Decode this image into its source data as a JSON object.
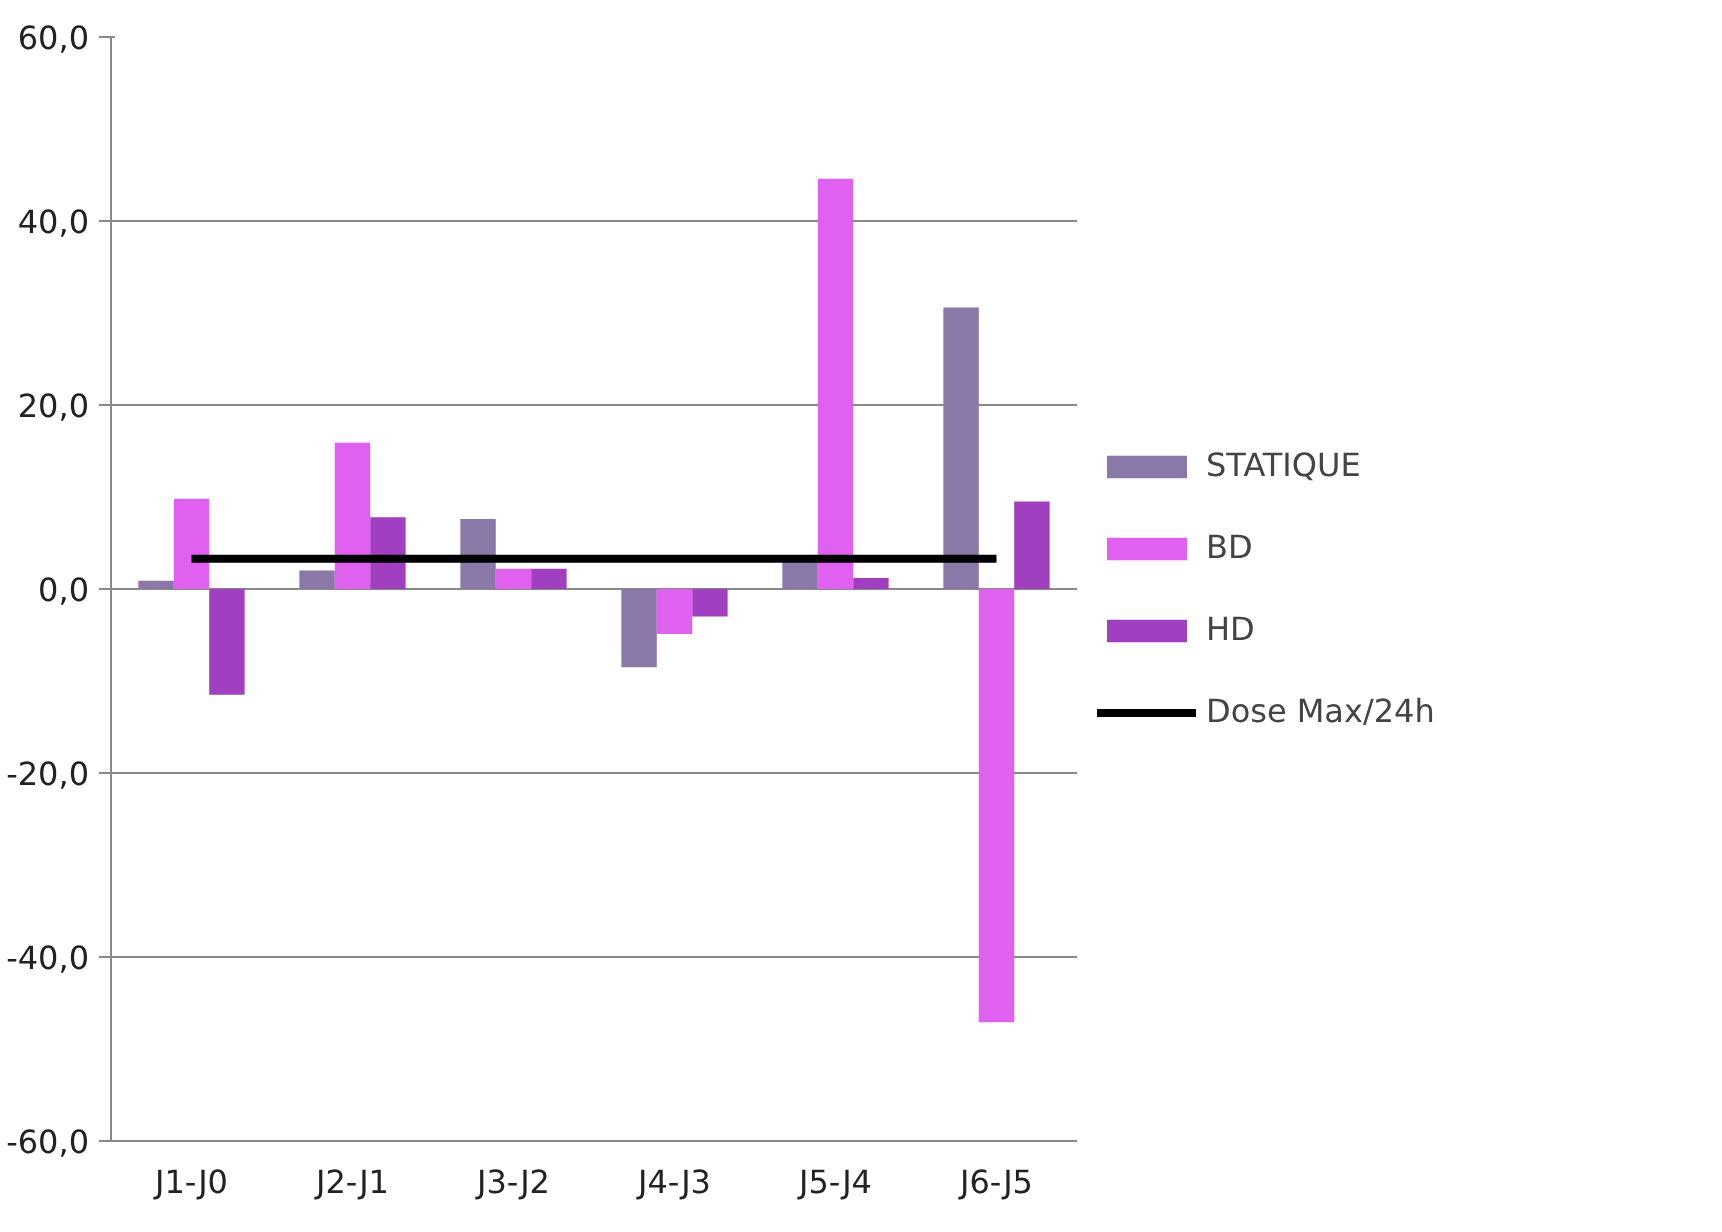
{
  "chart_data": {
    "type": "bar",
    "categories": [
      "J1-J0",
      "J2-J1",
      "J3-J2",
      "J4-J3",
      "J5-J4",
      "J6-J5"
    ],
    "series": [
      {
        "name": "STATIQUE",
        "color": "#8a78a8",
        "values": [
          0.9,
          2.0,
          7.6,
          -8.5,
          3.0,
          30.6
        ]
      },
      {
        "name": "BD",
        "color": "#e060f0",
        "values": [
          9.8,
          15.9,
          2.2,
          -4.9,
          44.6,
          -47.1
        ]
      },
      {
        "name": "HD",
        "color": "#a040c0",
        "values": [
          -11.5,
          7.8,
          2.2,
          -3.0,
          1.2,
          9.5
        ]
      },
      {
        "name": "Dose Max/24h",
        "type": "line",
        "color": "#000000",
        "values": [
          3.3,
          3.3,
          3.3,
          3.3,
          3.3,
          3.3
        ]
      }
    ],
    "ylim": [
      -60,
      60
    ],
    "yticks": [
      {
        "value": -60,
        "label": "-60,0"
      },
      {
        "value": -40,
        "label": "-40,0"
      },
      {
        "value": -20,
        "label": "-20,0"
      },
      {
        "value": 0,
        "label": "0,0"
      },
      {
        "value": 20,
        "label": "20,0"
      },
      {
        "value": 40,
        "label": "40,0"
      },
      {
        "value": 60,
        "label": "60,0"
      }
    ],
    "grid": "y",
    "legend": "right",
    "marker": "none",
    "line_style": "solid"
  }
}
